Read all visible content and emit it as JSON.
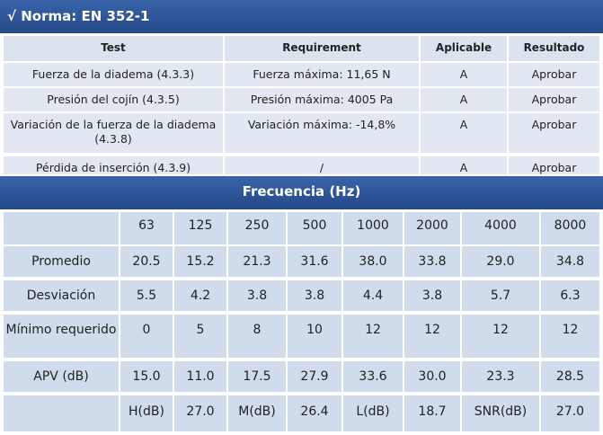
{
  "header": {
    "title": "√ Norma: EN 352-1"
  },
  "table1": {
    "columns": [
      "Test",
      "Requirement",
      "Aplicable",
      "Resultado"
    ],
    "rows": [
      [
        "Fuerza de la diadema (4.3.3)",
        "Fuerza máxima: 11,65 N",
        "A",
        "Aprobar"
      ],
      [
        "Presión del cojín (4.3.5)",
        "Presión máxima: 4005 Pa",
        "A",
        "Aprobar"
      ],
      [
        "Variación de la fuerza de la diadema (4.3.8)",
        "Variación máxima: -14,8%",
        "A",
        "Aprobar"
      ],
      [
        "Pérdida de inserción (4.3.9)",
        "/",
        "A",
        "Aprobar"
      ]
    ]
  },
  "table2": {
    "title": "Frecuencia (Hz)",
    "frequencies": [
      "63",
      "125",
      "250",
      "500",
      "1000",
      "2000",
      "4000",
      "8000"
    ],
    "rows": [
      {
        "label": "Promedio",
        "values": [
          "20.5",
          "15.2",
          "21.3",
          "31.6",
          "38.0",
          "33.8",
          "29.0",
          "34.8"
        ]
      },
      {
        "label": "Desviación",
        "values": [
          "5.5",
          "4.2",
          "3.8",
          "3.8",
          "4.4",
          "3.8",
          "5.7",
          "6.3"
        ]
      },
      {
        "label": "Mínimo requerido",
        "values": [
          "0",
          "5",
          "8",
          "10",
          "12",
          "12",
          "12",
          "12"
        ]
      },
      {
        "label": "APV (dB)",
        "values": [
          "15.0",
          "11.0",
          "17.5",
          "27.9",
          "33.6",
          "30.0",
          "23.3",
          "28.5"
        ]
      }
    ],
    "summary": [
      "H(dB)",
      "27.0",
      "M(dB)",
      "26.4",
      "L(dB)",
      "18.7",
      "SNR(dB)",
      "27.0"
    ]
  }
}
